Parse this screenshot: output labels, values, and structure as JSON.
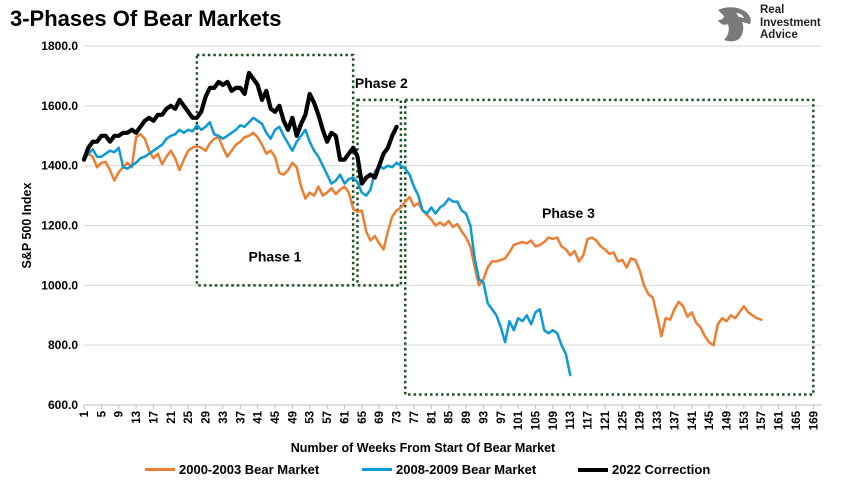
{
  "title": "3-Phases Of Bear Markets",
  "logo": {
    "lines": [
      "Real",
      "Investment",
      "Advice"
    ],
    "icon": "eagle-head-icon"
  },
  "chart_data": {
    "type": "line",
    "xlabel": "Number of Weeks From Start Of Bear Market",
    "ylabel": "S&P 500 Index",
    "ylim": [
      600,
      1800
    ],
    "xlim": [
      1,
      171
    ],
    "yticks": [
      "600.0",
      "800.0",
      "1000.0",
      "1200.0",
      "1400.0",
      "1600.0",
      "1800.0"
    ],
    "xtick_start": 1,
    "xtick_end": 169,
    "xtick_step": 4,
    "grid": "horizontal",
    "legend_position": "bottom",
    "colors": {
      "s2000": "#ed7d31",
      "s2008": "#0c9ad6",
      "s2022": "#000000",
      "phase_box": "#1e5128"
    },
    "phases": [
      {
        "label": "Phase 1",
        "x_start": 27,
        "x_end": 63,
        "y_low": 1000,
        "y_high": 1770
      },
      {
        "label": "Phase 2",
        "x_start": 64,
        "x_end": 74,
        "y_low": 1000,
        "y_high": 1620
      },
      {
        "label": "Phase 3",
        "x_start": 75,
        "x_end": 169,
        "y_low": 635,
        "y_high": 1620
      }
    ],
    "series": [
      {
        "name": "2000-2003 Bear Market",
        "color": "#ed7d31",
        "values": [
          1421,
          1440,
          1430,
          1395,
          1410,
          1412,
          1385,
          1350,
          1378,
          1395,
          1410,
          1395,
          1495,
          1505,
          1490,
          1450,
          1425,
          1440,
          1405,
          1430,
          1450,
          1425,
          1385,
          1420,
          1450,
          1460,
          1465,
          1460,
          1450,
          1475,
          1490,
          1495,
          1460,
          1430,
          1450,
          1470,
          1480,
          1495,
          1500,
          1510,
          1495,
          1470,
          1440,
          1450,
          1430,
          1375,
          1370,
          1385,
          1410,
          1395,
          1330,
          1290,
          1310,
          1300,
          1330,
          1300,
          1310,
          1325,
          1305,
          1320,
          1330,
          1310,
          1255,
          1245,
          1250,
          1180,
          1150,
          1165,
          1140,
          1120,
          1180,
          1230,
          1250,
          1260,
          1280,
          1295,
          1265,
          1275,
          1250,
          1235,
          1220,
          1200,
          1210,
          1200,
          1215,
          1195,
          1205,
          1180,
          1160,
          1130,
          1060,
          1000,
          1020,
          1060,
          1080,
          1080,
          1085,
          1090,
          1110,
          1135,
          1140,
          1145,
          1140,
          1150,
          1130,
          1135,
          1145,
          1160,
          1155,
          1160,
          1130,
          1120,
          1100,
          1115,
          1080,
          1100,
          1155,
          1160,
          1150,
          1130,
          1120,
          1105,
          1110,
          1080,
          1085,
          1060,
          1090,
          1085,
          1050,
          1000,
          970,
          960,
          900,
          830,
          890,
          885,
          920,
          945,
          930,
          895,
          910,
          875,
          860,
          830,
          810,
          800,
          870,
          890,
          880,
          900,
          890,
          910,
          930,
          910,
          900,
          890,
          885
        ]
      },
      {
        "name": "2008-2009 Bear Market",
        "color": "#0c9ad6",
        "values": [
          1420,
          1440,
          1455,
          1430,
          1430,
          1440,
          1450,
          1445,
          1460,
          1395,
          1390,
          1400,
          1410,
          1425,
          1430,
          1440,
          1450,
          1460,
          1470,
          1490,
          1500,
          1505,
          1520,
          1510,
          1520,
          1515,
          1535,
          1520,
          1530,
          1545,
          1505,
          1500,
          1490,
          1500,
          1510,
          1520,
          1535,
          1530,
          1545,
          1560,
          1550,
          1540,
          1510,
          1490,
          1520,
          1530,
          1500,
          1475,
          1450,
          1480,
          1500,
          1520,
          1480,
          1450,
          1430,
          1400,
          1370,
          1340,
          1350,
          1370,
          1340,
          1355,
          1360,
          1345,
          1310,
          1300,
          1320,
          1380,
          1400,
          1390,
          1400,
          1395,
          1410,
          1400,
          1390,
          1370,
          1330,
          1300,
          1250,
          1240,
          1260,
          1240,
          1260,
          1270,
          1290,
          1280,
          1280,
          1250,
          1240,
          1200,
          1090,
          1020,
          1010,
          940,
          920,
          900,
          860,
          810,
          880,
          850,
          890,
          880,
          900,
          870,
          910,
          920,
          850,
          840,
          850,
          840,
          800,
          770,
          700
        ]
      },
      {
        "name": "2022 Correction",
        "color": "#000000",
        "values": [
          1420,
          1460,
          1480,
          1480,
          1500,
          1500,
          1480,
          1500,
          1500,
          1510,
          1510,
          1520,
          1510,
          1530,
          1550,
          1560,
          1550,
          1570,
          1570,
          1590,
          1600,
          1590,
          1620,
          1600,
          1580,
          1560,
          1560,
          1580,
          1630,
          1660,
          1660,
          1680,
          1670,
          1680,
          1650,
          1660,
          1660,
          1640,
          1710,
          1690,
          1670,
          1620,
          1650,
          1590,
          1580,
          1600,
          1550,
          1520,
          1560,
          1500,
          1540,
          1570,
          1640,
          1610,
          1570,
          1520,
          1480,
          1510,
          1500,
          1420,
          1420,
          1440,
          1460,
          1430,
          1340,
          1360,
          1370,
          1360,
          1400,
          1440,
          1460,
          1500,
          1530
        ]
      }
    ]
  }
}
